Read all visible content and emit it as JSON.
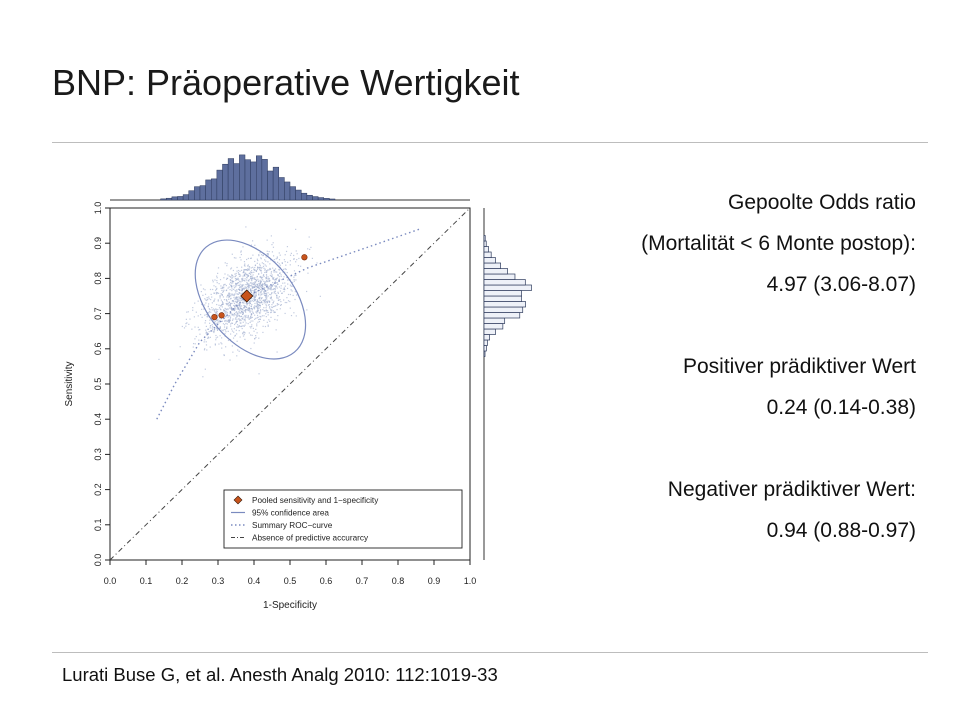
{
  "slide": {
    "title": "BNP: Präoperative Wertigkeit",
    "citation": "Lurati Buse G, et al. Anesth Analg 2010: 112:1019-33"
  },
  "stats": {
    "odds_label": "Gepoolte Odds ratio",
    "odds_sub": "(Mortalität < 6 Monte postop):",
    "odds_value": "4.97 (3.06-8.07)",
    "ppv_label": "Positiver prädiktiver Wert",
    "ppv_value": "0.24 (0.14-0.38)",
    "npv_label": "Negativer prädiktiver Wert:",
    "npv_value": "0.94 (0.88-0.97)"
  },
  "chart_data": {
    "type": "scatter",
    "xlabel": "1-Specificity",
    "ylabel": "Sensitivity",
    "xlim": [
      0.0,
      1.0
    ],
    "ylim": [
      0.0,
      1.0
    ],
    "x_ticks": [
      "0.0",
      "0.1",
      "0.2",
      "0.3",
      "0.4",
      "0.5",
      "0.6",
      "0.7",
      "0.8",
      "0.9",
      "1.0"
    ],
    "y_ticks": [
      "0.0",
      "0.1",
      "0.2",
      "0.3",
      "0.4",
      "0.5",
      "0.6",
      "0.7",
      "0.8",
      "0.9",
      "1.0"
    ],
    "pooled": {
      "x": 0.38,
      "y": 0.75
    },
    "studies": [
      {
        "x": 0.29,
        "y": 0.69
      },
      {
        "x": 0.31,
        "y": 0.695
      },
      {
        "x": 0.54,
        "y": 0.86
      }
    ],
    "confidence_ellipse": {
      "cx": 0.39,
      "cy": 0.74,
      "rx": 0.12,
      "ry": 0.195,
      "angle_deg": 40
    },
    "summary_roc": [
      [
        0.13,
        0.4
      ],
      [
        0.18,
        0.5
      ],
      [
        0.25,
        0.62
      ],
      [
        0.38,
        0.75
      ],
      [
        0.55,
        0.83
      ],
      [
        0.72,
        0.89
      ],
      [
        0.86,
        0.94
      ]
    ],
    "legend": [
      "Pooled sensitivity and 1−specificity",
      "95% confidence area",
      "Summary ROC−curve",
      "Absence of predictive accurarcy"
    ],
    "legend_position": "bottom-right",
    "colors": {
      "pooled_marker": "#c8541c",
      "cloud": "#9aa8cc",
      "ellipse": "#7a8abf",
      "histogram": "#5e6f9e"
    },
    "grid": false
  }
}
